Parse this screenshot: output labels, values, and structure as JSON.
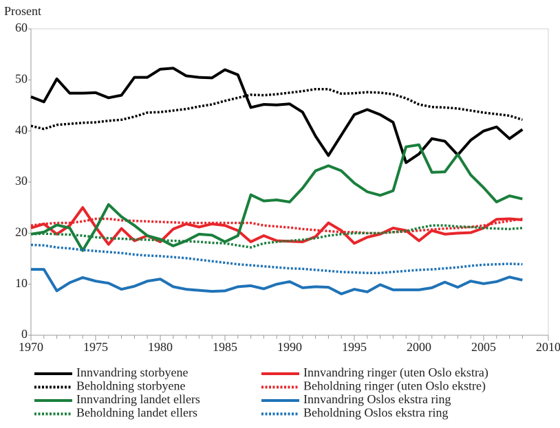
{
  "chart_data": {
    "type": "line",
    "y_label": "Prosent",
    "x": [
      1970,
      1971,
      1972,
      1973,
      1974,
      1975,
      1976,
      1977,
      1978,
      1979,
      1980,
      1981,
      1982,
      1983,
      1984,
      1985,
      1986,
      1987,
      1988,
      1989,
      1990,
      1991,
      1992,
      1993,
      1994,
      1995,
      1996,
      1997,
      1998,
      1999,
      2000,
      2001,
      2002,
      2003,
      2004,
      2005,
      2006,
      2007,
      2008
    ],
    "xlim": [
      1970,
      2010
    ],
    "xticks": [
      1970,
      1975,
      1980,
      1985,
      1990,
      1995,
      2000,
      2005,
      2010
    ],
    "ylim": [
      0,
      60
    ],
    "yticks": [
      0,
      10,
      20,
      30,
      40,
      50,
      60
    ],
    "grid": false,
    "legend": "bottom",
    "series": [
      {
        "name": "Innvandring storbyene",
        "color": "#000000",
        "style": "solid",
        "values": [
          46.7,
          45.7,
          50.2,
          47.4,
          47.4,
          47.5,
          46.5,
          47.0,
          50.5,
          50.5,
          52.1,
          52.3,
          50.8,
          50.5,
          50.4,
          52.0,
          51.0,
          44.6,
          45.2,
          45.1,
          45.3,
          43.7,
          39.0,
          35.2,
          39.2,
          43.2,
          44.2,
          43.2,
          41.7,
          33.8,
          35.5,
          38.5,
          38.0,
          35.3,
          38.2,
          40.0,
          40.8,
          38.5,
          40.3
        ]
      },
      {
        "name": "Innvandring ringer (uten Oslo ekstra)",
        "color": "#e8262b",
        "style": "solid",
        "values": [
          21.0,
          21.8,
          19.8,
          21.5,
          25.0,
          21.2,
          17.8,
          20.9,
          18.5,
          19.5,
          18.3,
          20.8,
          21.8,
          21.2,
          21.8,
          21.5,
          20.5,
          18.3,
          19.5,
          18.5,
          18.4,
          18.3,
          19.3,
          22.0,
          20.5,
          18.0,
          19.2,
          19.8,
          21.0,
          20.5,
          18.5,
          20.5,
          19.8,
          20.0,
          20.1,
          21.0,
          22.7,
          22.8,
          22.6
        ]
      },
      {
        "name": "Beholdning storbyene",
        "color": "#000000",
        "style": "dotted",
        "values": [
          41.0,
          40.4,
          41.2,
          41.4,
          41.6,
          41.7,
          42.0,
          42.2,
          42.8,
          43.6,
          43.7,
          44.0,
          44.3,
          44.8,
          45.2,
          45.9,
          46.5,
          47.1,
          47.0,
          47.2,
          47.5,
          47.8,
          48.2,
          48.2,
          47.3,
          47.4,
          47.6,
          47.5,
          47.2,
          46.4,
          45.2,
          44.7,
          44.6,
          44.4,
          44.0,
          43.6,
          43.3,
          43.0,
          42.2
        ]
      },
      {
        "name": "Beholdning ringer (uten Oslo ekstre)",
        "color": "#e8262b",
        "style": "dotted",
        "values": [
          21.5,
          21.8,
          22.0,
          22.0,
          22.3,
          22.8,
          22.8,
          22.5,
          22.4,
          22.3,
          22.2,
          22.1,
          22.0,
          22.0,
          22.0,
          22.0,
          22.0,
          22.0,
          21.5,
          21.3,
          21.1,
          20.8,
          20.6,
          20.4,
          20.2,
          20.2,
          20.0,
          20.0,
          20.2,
          20.3,
          20.5,
          20.7,
          20.9,
          21.0,
          21.2,
          21.5,
          22.0,
          22.4,
          22.8
        ]
      },
      {
        "name": "Innvandring landet ellers",
        "color": "#1a7f3c",
        "style": "solid",
        "values": [
          19.8,
          20.2,
          21.6,
          21.0,
          16.6,
          20.8,
          25.6,
          23.2,
          21.5,
          19.5,
          18.8,
          17.5,
          18.5,
          19.8,
          19.6,
          18.3,
          19.5,
          27.5,
          26.3,
          26.5,
          26.1,
          28.8,
          32.2,
          33.2,
          32.2,
          29.8,
          28.1,
          27.4,
          28.3,
          36.9,
          37.3,
          31.9,
          32.0,
          35.4,
          31.4,
          28.9,
          26.1,
          27.3,
          26.7
        ]
      },
      {
        "name": "Innvandring Oslos ekstra ring",
        "color": "#1f73b7",
        "style": "solid",
        "values": [
          12.9,
          12.9,
          8.7,
          10.3,
          11.3,
          10.6,
          10.2,
          9.0,
          9.6,
          10.6,
          11.0,
          9.5,
          9.0,
          8.8,
          8.6,
          8.7,
          9.5,
          9.7,
          9.1,
          10.0,
          10.5,
          9.3,
          9.5,
          9.4,
          8.1,
          9.0,
          8.5,
          9.9,
          8.9,
          8.9,
          8.9,
          9.3,
          10.4,
          9.4,
          10.6,
          10.1,
          10.5,
          11.4,
          10.8
        ]
      },
      {
        "name": "Beholdning landet ellers",
        "color": "#1a7f3c",
        "style": "dotted",
        "values": [
          19.8,
          19.9,
          19.8,
          19.7,
          19.5,
          19.2,
          19.0,
          18.9,
          18.8,
          18.7,
          18.6,
          18.5,
          18.4,
          18.3,
          18.1,
          18.0,
          17.6,
          17.2,
          18.0,
          18.3,
          18.5,
          18.7,
          19.0,
          19.5,
          19.8,
          20.0,
          20.0,
          20.0,
          20.2,
          20.4,
          21.0,
          21.5,
          21.5,
          21.3,
          21.2,
          21.0,
          20.9,
          20.8,
          21.0
        ]
      },
      {
        "name": "Beholdning Oslos ekstra ring",
        "color": "#1f73b7",
        "style": "dotted",
        "values": [
          17.7,
          17.6,
          17.2,
          17.0,
          16.7,
          16.5,
          16.3,
          16.1,
          15.8,
          15.6,
          15.5,
          15.3,
          15.1,
          14.8,
          14.5,
          14.2,
          13.9,
          13.7,
          13.5,
          13.3,
          13.1,
          13.0,
          12.8,
          12.6,
          12.4,
          12.3,
          12.2,
          12.2,
          12.4,
          12.6,
          12.8,
          12.9,
          13.1,
          13.3,
          13.6,
          13.8,
          13.9,
          14.0,
          13.9
        ]
      }
    ]
  }
}
